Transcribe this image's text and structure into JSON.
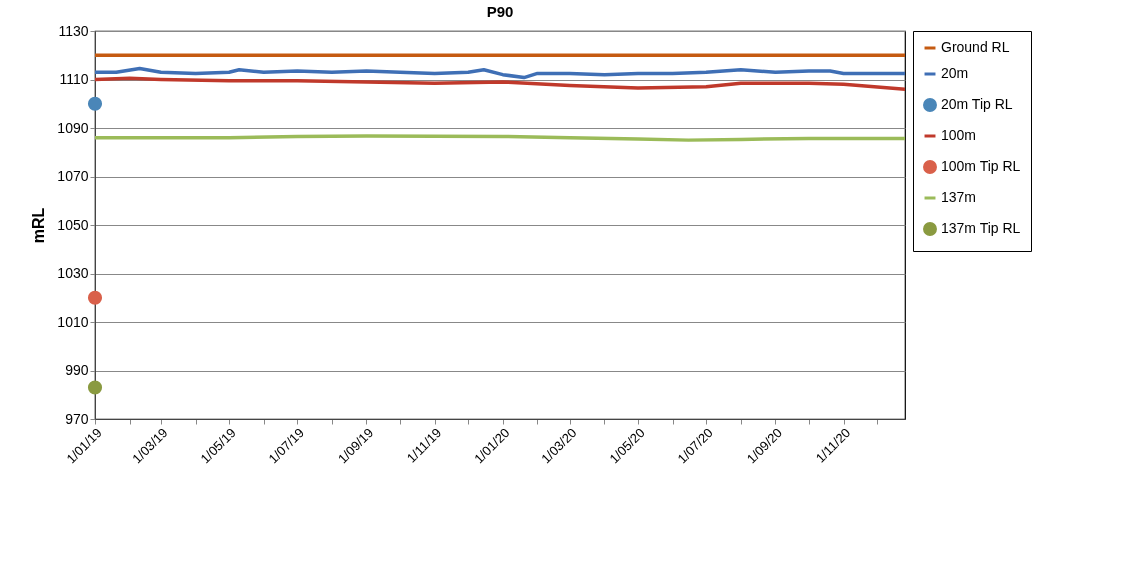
{
  "chart_data": {
    "type": "line",
    "title": "P90",
    "ylabel": "mRL",
    "xlim": [
      "2019-01-01",
      "2020-12-26"
    ],
    "xticks": [
      {
        "value": "2019-01-01",
        "label": "1/01/19"
      },
      {
        "value": "2019-02-01",
        "label": null
      },
      {
        "value": "2019-03-01",
        "label": "1/03/19"
      },
      {
        "value": "2019-04-01",
        "label": null
      },
      {
        "value": "2019-05-01",
        "label": "1/05/19"
      },
      {
        "value": "2019-06-01",
        "label": null
      },
      {
        "value": "2019-07-01",
        "label": "1/07/19"
      },
      {
        "value": "2019-08-01",
        "label": null
      },
      {
        "value": "2019-09-01",
        "label": "1/09/19"
      },
      {
        "value": "2019-10-01",
        "label": null
      },
      {
        "value": "2019-11-01",
        "label": "1/11/19"
      },
      {
        "value": "2019-12-01",
        "label": null
      },
      {
        "value": "2020-01-01",
        "label": "1/01/20"
      },
      {
        "value": "2020-02-01",
        "label": null
      },
      {
        "value": "2020-03-01",
        "label": "1/03/20"
      },
      {
        "value": "2020-04-01",
        "label": null
      },
      {
        "value": "2020-05-01",
        "label": "1/05/20"
      },
      {
        "value": "2020-06-01",
        "label": null
      },
      {
        "value": "2020-07-01",
        "label": "1/07/20"
      },
      {
        "value": "2020-08-01",
        "label": null
      },
      {
        "value": "2020-09-01",
        "label": "1/09/20"
      },
      {
        "value": "2020-10-01",
        "label": null
      },
      {
        "value": "2020-11-01",
        "label": "1/11/20"
      },
      {
        "value": "2020-12-01",
        "label": null
      }
    ],
    "ylim": [
      970,
      1130
    ],
    "yticks": [
      970,
      990,
      1010,
      1030,
      1050,
      1070,
      1090,
      1110,
      1130
    ],
    "grid": "y",
    "legend": "right",
    "line_style": "solid",
    "series": [
      {
        "name": "Ground RL",
        "type": "line",
        "marker": "none",
        "color": "#c55a11",
        "x": [
          "2019-01-01",
          "2020-12-26"
        ],
        "values": [
          1120,
          1120
        ]
      },
      {
        "name": "20m",
        "type": "line",
        "marker": "none",
        "color": "#3f6fb5",
        "x": [
          "2019-01-01",
          "2019-01-20",
          "2019-02-10",
          "2019-03-01",
          "2019-04-01",
          "2019-05-01",
          "2019-05-10",
          "2019-06-01",
          "2019-07-01",
          "2019-08-01",
          "2019-09-01",
          "2019-10-01",
          "2019-11-01",
          "2019-12-01",
          "2019-12-15",
          "2020-01-01",
          "2020-01-20",
          "2020-02-01",
          "2020-03-01",
          "2020-04-01",
          "2020-05-01",
          "2020-06-01",
          "2020-07-01",
          "2020-08-01",
          "2020-09-01",
          "2020-10-01",
          "2020-10-20",
          "2020-11-01",
          "2020-12-26"
        ],
        "values": [
          1113,
          1113,
          1114.5,
          1113,
          1112.5,
          1113,
          1114,
          1113,
          1113.5,
          1113,
          1113.5,
          1113,
          1112.5,
          1113,
          1114,
          1112,
          1110.8,
          1112.5,
          1112.5,
          1112,
          1112.5,
          1112.5,
          1113,
          1114,
          1113,
          1113.5,
          1113.5,
          1112.5,
          1112.5
        ]
      },
      {
        "name": "20m Tip RL",
        "type": "scatter",
        "marker": "circle",
        "color": "#4a86b8",
        "x": [
          "2019-01-01"
        ],
        "values": [
          1100
        ]
      },
      {
        "name": "100m",
        "type": "line",
        "marker": "none",
        "color": "#c0392b",
        "x": [
          "2019-01-01",
          "2019-02-01",
          "2019-03-01",
          "2019-05-01",
          "2019-07-01",
          "2019-09-01",
          "2019-11-01",
          "2020-01-01",
          "2020-03-01",
          "2020-05-01",
          "2020-07-01",
          "2020-08-01",
          "2020-10-01",
          "2020-11-01",
          "2020-12-26"
        ],
        "values": [
          1110,
          1110.5,
          1110,
          1109.5,
          1109.5,
          1109,
          1108.5,
          1109,
          1107.5,
          1106.5,
          1107,
          1108.5,
          1108.5,
          1108,
          1106
        ]
      },
      {
        "name": "100m Tip RL",
        "type": "scatter",
        "marker": "circle",
        "color": "#d9604a",
        "x": [
          "2019-01-01"
        ],
        "values": [
          1020
        ]
      },
      {
        "name": "137m",
        "type": "line",
        "marker": "none",
        "color": "#9bbb59",
        "x": [
          "2019-01-01",
          "2019-05-01",
          "2019-07-01",
          "2019-09-01",
          "2020-01-01",
          "2020-03-01",
          "2020-05-01",
          "2020-06-15",
          "2020-08-01",
          "2020-10-01",
          "2020-12-26"
        ],
        "values": [
          1086,
          1086,
          1086.5,
          1086.7,
          1086.5,
          1086,
          1085.5,
          1085,
          1085.3,
          1085.7,
          1085.7
        ]
      },
      {
        "name": "137m Tip RL",
        "type": "scatter",
        "marker": "circle",
        "color": "#8a9a40",
        "x": [
          "2019-01-01"
        ],
        "values": [
          983
        ]
      }
    ]
  }
}
